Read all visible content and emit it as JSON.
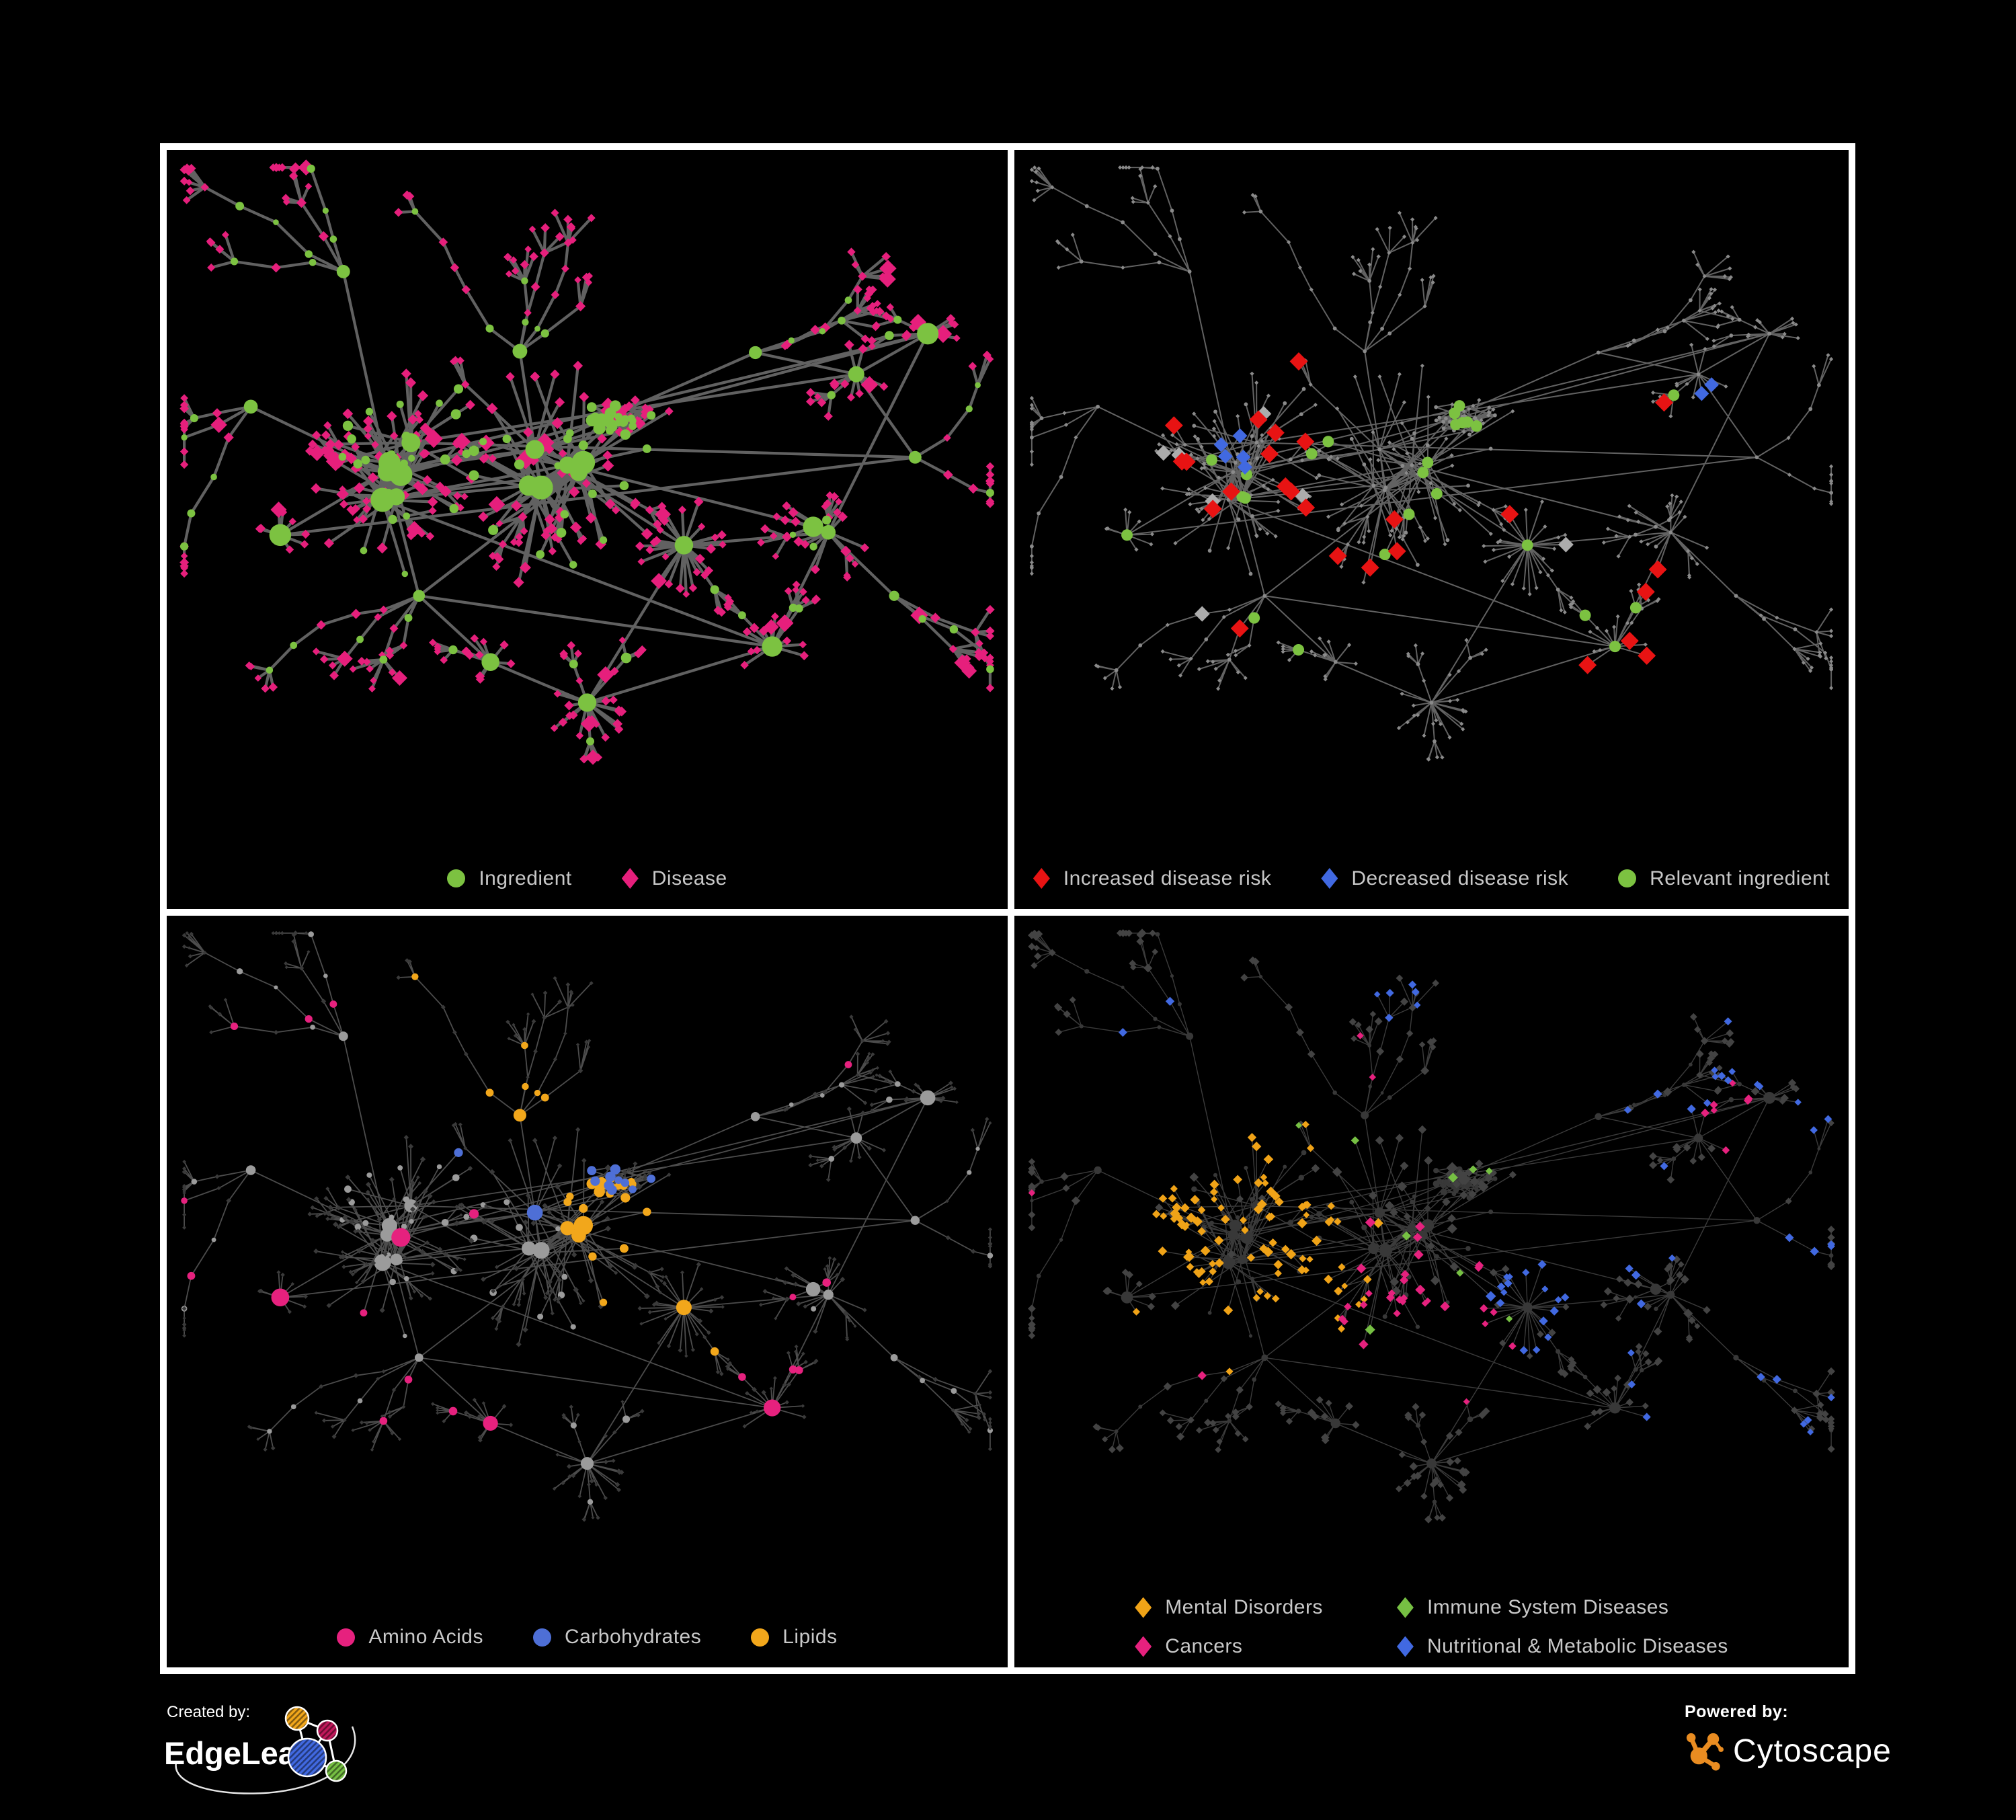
{
  "frame": {
    "background": "#000000",
    "border_color": "#FFFFFF"
  },
  "network": {
    "layout_seed": 7
  },
  "panels": [
    {
      "id": "ingredient-disease",
      "view_seed": 5,
      "legend_layout": "row",
      "legend": [
        {
          "shape": "circle",
          "color": "#7CC241",
          "label": "Ingredient"
        },
        {
          "shape": "diamond",
          "color": "#E61F7C",
          "label": "Disease"
        }
      ],
      "style": {
        "edge_color": "#6E6E6E",
        "edge_width": 4.2,
        "edge_opacity": 0.88,
        "circle_color": "#7CC241",
        "diamond_color": "#E61F7C"
      }
    },
    {
      "id": "disease-risk",
      "view_seed": 23,
      "legend_layout": "row",
      "legend": [
        {
          "shape": "diamond",
          "color": "#E81313",
          "label": "Increased disease risk"
        },
        {
          "shape": "diamond",
          "color": "#4169E1",
          "label": "Decreased disease risk"
        },
        {
          "shape": "circle",
          "color": "#7CC241",
          "label": "Relevant ingredient"
        }
      ],
      "style": {
        "edge_color": "#7B7B7B",
        "edge_width": 2,
        "edge_opacity": 0.8,
        "base_color": "#8A8A8A",
        "highlights": {
          "increased": "#E81313",
          "decreased": "#4169E1",
          "unchanged": "#ACACAC",
          "relevant": "#7CC241"
        }
      }
    },
    {
      "id": "macronutrients",
      "view_seed": 41,
      "legend_layout": "row",
      "legend": [
        {
          "shape": "circle",
          "color": "#E6217E",
          "label": "Amino Acids"
        },
        {
          "shape": "circle",
          "color": "#4E6FD6",
          "label": "Carbohydrates"
        },
        {
          "shape": "circle",
          "color": "#F2A71B",
          "label": "Lipids"
        }
      ],
      "style": {
        "edge_color": "#979797",
        "edge_width": 1.8,
        "edge_opacity": 0.5,
        "circle_color": "#9B9B9B",
        "diamond_color": "#3A3A3A",
        "highlights": {
          "amino": "#E6217E",
          "carbs": "#4E6FD6",
          "lipids": "#F2A71B"
        }
      }
    },
    {
      "id": "disease-categories",
      "view_seed": 67,
      "legend_layout": "grid",
      "legend": [
        {
          "shape": "diamond",
          "color": "#F0A317",
          "label": "Mental Disorders"
        },
        {
          "shape": "diamond",
          "color": "#76C043",
          "label": "Immune System Diseases"
        },
        {
          "shape": "diamond",
          "color": "#E6217E",
          "label": "Cancers"
        },
        {
          "shape": "diamond",
          "color": "#4169E1",
          "label": "Nutritional & Metabolic Diseases"
        }
      ],
      "style": {
        "edge_color": "#C4C4C4",
        "edge_width": 1.4,
        "edge_opacity": 0.3,
        "circle_color": "#383838",
        "diamond_color": "#434343",
        "highlights": {
          "mental": "#F0A317",
          "immune": "#76C043",
          "cancers": "#E6217E",
          "nutritional": "#4169E1"
        }
      }
    }
  ],
  "footer": {
    "created_by_label": "Created by:",
    "created_by_brand": "EdgeLeap",
    "powered_by_label": "Powered by:",
    "powered_by_brand": "Cytoscape",
    "edgeleap_node_colors": [
      "#F2A71B",
      "#C2185B",
      "#4169E1",
      "#76C043"
    ],
    "cytoscape_color": "#E98C21"
  }
}
